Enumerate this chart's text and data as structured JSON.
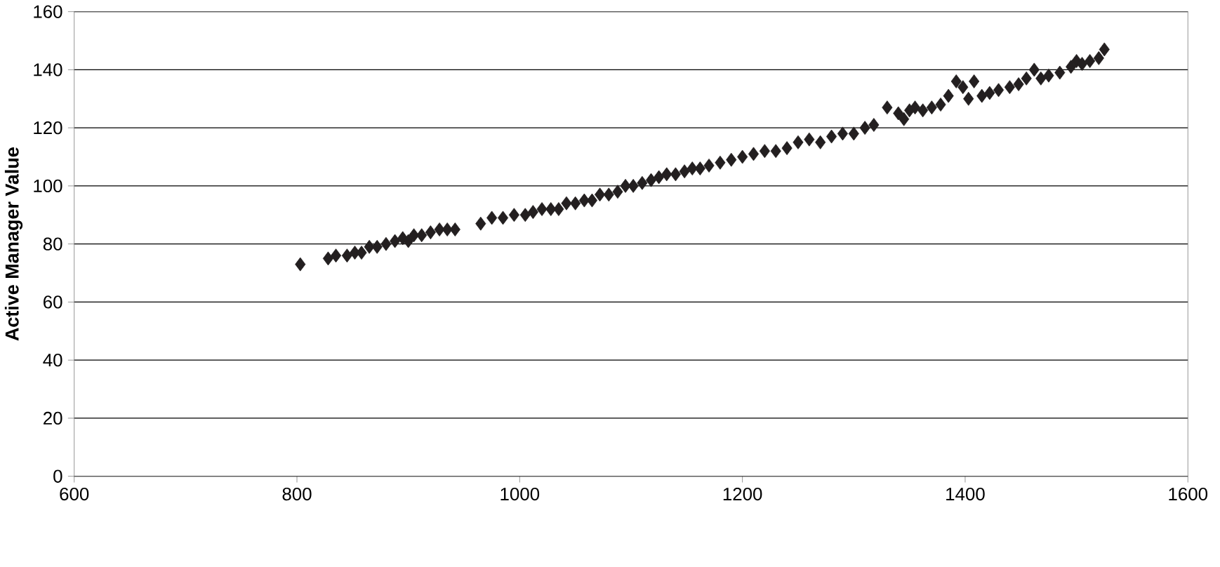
{
  "chart_data": {
    "type": "scatter",
    "ylabel": "Active Manager Value",
    "marker": "diamond",
    "grid": "y",
    "xlim": [
      600,
      1600
    ],
    "xticks": [
      600,
      800,
      1000,
      1200,
      1400,
      1600
    ],
    "ylim": [
      0,
      160
    ],
    "yticks": [
      0,
      20,
      40,
      60,
      80,
      100,
      120,
      140,
      160
    ],
    "series": [
      {
        "color": "#231f20",
        "x": [
          803,
          828,
          835,
          845,
          852,
          858,
          865,
          872,
          880,
          888,
          895,
          900,
          905,
          912,
          920,
          928,
          935,
          942,
          965,
          975,
          985,
          995,
          1005,
          1012,
          1020,
          1028,
          1035,
          1042,
          1050,
          1058,
          1065,
          1072,
          1080,
          1088,
          1095,
          1102,
          1110,
          1118,
          1125,
          1132,
          1140,
          1148,
          1155,
          1162,
          1170,
          1180,
          1190,
          1200,
          1210,
          1220,
          1230,
          1240,
          1250,
          1260,
          1270,
          1280,
          1290,
          1300,
          1310,
          1318,
          1330,
          1340,
          1345,
          1350,
          1355,
          1362,
          1370,
          1378,
          1385,
          1392,
          1398,
          1403,
          1408,
          1415,
          1422,
          1430,
          1440,
          1448,
          1455,
          1462,
          1468,
          1475,
          1485,
          1495,
          1500,
          1505,
          1512,
          1520,
          1525
        ],
        "values": [
          73,
          75,
          76,
          76,
          77,
          77,
          79,
          79,
          80,
          81,
          82,
          81,
          83,
          83,
          84,
          85,
          85,
          85,
          87,
          89,
          89,
          90,
          90,
          91,
          92,
          92,
          92,
          94,
          94,
          95,
          95,
          97,
          97,
          98,
          100,
          100,
          101,
          102,
          103,
          104,
          104,
          105,
          106,
          106,
          107,
          108,
          109,
          110,
          111,
          112,
          112,
          113,
          115,
          116,
          115,
          117,
          118,
          118,
          120,
          121,
          127,
          125,
          123,
          126,
          127,
          126,
          127,
          128,
          131,
          136,
          134,
          130,
          136,
          131,
          132,
          133,
          134,
          135,
          137,
          140,
          137,
          138,
          139,
          141,
          143,
          142,
          143,
          144,
          147
        ]
      }
    ]
  }
}
